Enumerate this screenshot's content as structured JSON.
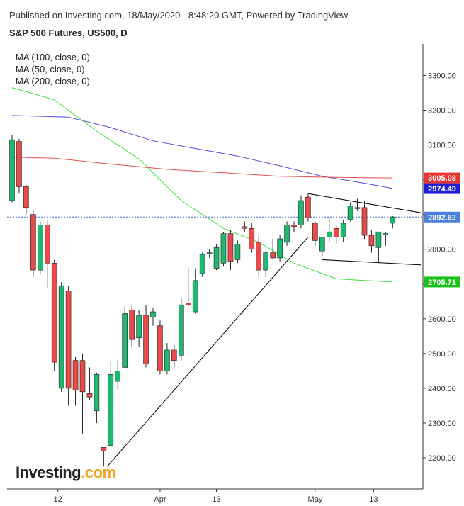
{
  "header": {
    "publish_line": "Published on Investing.com, 18/May/2020 - 8:48:20 GMT, Powered by TradingView.",
    "title": "S&P 500 Futures, US500, D"
  },
  "legend": [
    {
      "label": "MA (100, close, 0)",
      "color": "#4f4fe8"
    },
    {
      "label": "MA (50, close, 0)",
      "color": "#3ce63c"
    },
    {
      "label": "MA (200, close, 0)",
      "color": "#e84f4f"
    }
  ],
  "logo": {
    "text": "Investing",
    "suffix": ".com"
  },
  "colors": {
    "up": "#1fb86f",
    "down": "#e94b4b",
    "wick": "#222222",
    "last_price_line": "#3f6fd6"
  },
  "chart_data": {
    "type": "candlestick",
    "title": "S&P 500 Futures, US500, D",
    "y_ticks": [
      "3300.00",
      "3200.00",
      "3100.00",
      "3000.00",
      "2900.00",
      "2800.00",
      "2700.00",
      "2600.00",
      "2500.00",
      "2400.00",
      "2300.00",
      "2200.00"
    ],
    "x_ticks": [
      {
        "label": "12",
        "index": 6.5
      },
      {
        "label": "Apr",
        "index": 21
      },
      {
        "label": "13",
        "index": 29
      },
      {
        "label": "May",
        "index": 43
      },
      {
        "label": "13",
        "index": 51.3
      }
    ],
    "ylim": [
      2120,
      3380
    ],
    "price_tags": [
      {
        "label": "3005.08",
        "value": 3005.08,
        "color": "#e8352f"
      },
      {
        "label": "2974.49",
        "value": 2974.49,
        "color": "#1f1fd8"
      },
      {
        "label": "2892.62",
        "value": 2892.62,
        "color": "#4a7fdc"
      },
      {
        "label": "2705.71",
        "value": 2705.71,
        "color": "#17c117"
      }
    ],
    "candles": [
      {
        "o": 2940,
        "h": 3130,
        "l": 2935,
        "c": 3115
      },
      {
        "o": 3110,
        "h": 3118,
        "l": 2960,
        "c": 2980
      },
      {
        "o": 2980,
        "h": 2985,
        "l": 2900,
        "c": 2920
      },
      {
        "o": 2900,
        "h": 2910,
        "l": 2720,
        "c": 2740
      },
      {
        "o": 2740,
        "h": 2880,
        "l": 2730,
        "c": 2870
      },
      {
        "o": 2870,
        "h": 2885,
        "l": 2690,
        "c": 2760
      },
      {
        "o": 2760,
        "h": 2770,
        "l": 2450,
        "c": 2475
      },
      {
        "o": 2400,
        "h": 2705,
        "l": 2390,
        "c": 2695
      },
      {
        "o": 2680,
        "h": 2695,
        "l": 2350,
        "c": 2400
      },
      {
        "o": 2480,
        "h": 2490,
        "l": 2350,
        "c": 2395
      },
      {
        "o": 2480,
        "h": 2500,
        "l": 2270,
        "c": 2390
      },
      {
        "o": 2385,
        "h": 2460,
        "l": 2365,
        "c": 2375
      },
      {
        "o": 2335,
        "h": 2445,
        "l": 2300,
        "c": 2440
      },
      {
        "o": 2230,
        "h": 2230,
        "l": 2175,
        "c": 2220
      },
      {
        "o": 2235,
        "h": 2475,
        "l": 2230,
        "c": 2440
      },
      {
        "o": 2420,
        "h": 2480,
        "l": 2395,
        "c": 2450
      },
      {
        "o": 2460,
        "h": 2635,
        "l": 2460,
        "c": 2615
      },
      {
        "o": 2625,
        "h": 2640,
        "l": 2520,
        "c": 2540
      },
      {
        "o": 2545,
        "h": 2625,
        "l": 2520,
        "c": 2610
      },
      {
        "o": 2610,
        "h": 2640,
        "l": 2460,
        "c": 2470
      },
      {
        "o": 2605,
        "h": 2630,
        "l": 2580,
        "c": 2620
      },
      {
        "o": 2580,
        "h": 2595,
        "l": 2440,
        "c": 2450
      },
      {
        "o": 2450,
        "h": 2530,
        "l": 2440,
        "c": 2510
      },
      {
        "o": 2510,
        "h": 2525,
        "l": 2460,
        "c": 2480
      },
      {
        "o": 2495,
        "h": 2660,
        "l": 2480,
        "c": 2640
      },
      {
        "o": 2645,
        "h": 2745,
        "l": 2635,
        "c": 2640
      },
      {
        "o": 2620,
        "h": 2745,
        "l": 2615,
        "c": 2710
      },
      {
        "o": 2730,
        "h": 2790,
        "l": 2720,
        "c": 2785
      },
      {
        "o": 2790,
        "h": 2800,
        "l": 2775,
        "c": 2790
      },
      {
        "o": 2745,
        "h": 2815,
        "l": 2740,
        "c": 2805
      },
      {
        "o": 2760,
        "h": 2850,
        "l": 2750,
        "c": 2845
      },
      {
        "o": 2845,
        "h": 2855,
        "l": 2740,
        "c": 2765
      },
      {
        "o": 2770,
        "h": 2825,
        "l": 2760,
        "c": 2815
      },
      {
        "o": 2865,
        "h": 2880,
        "l": 2850,
        "c": 2860
      },
      {
        "o": 2860,
        "h": 2875,
        "l": 2790,
        "c": 2800
      },
      {
        "o": 2820,
        "h": 2840,
        "l": 2720,
        "c": 2740
      },
      {
        "o": 2740,
        "h": 2795,
        "l": 2720,
        "c": 2790
      },
      {
        "o": 2790,
        "h": 2830,
        "l": 2770,
        "c": 2775
      },
      {
        "o": 2775,
        "h": 2840,
        "l": 2765,
        "c": 2830
      },
      {
        "o": 2820,
        "h": 2880,
        "l": 2810,
        "c": 2870
      },
      {
        "o": 2870,
        "h": 2880,
        "l": 2850,
        "c": 2865
      },
      {
        "o": 2870,
        "h": 2955,
        "l": 2860,
        "c": 2940
      },
      {
        "o": 2950,
        "h": 2960,
        "l": 2880,
        "c": 2890
      },
      {
        "o": 2875,
        "h": 2880,
        "l": 2810,
        "c": 2825
      },
      {
        "o": 2795,
        "h": 2835,
        "l": 2780,
        "c": 2835
      },
      {
        "o": 2835,
        "h": 2890,
        "l": 2820,
        "c": 2850
      },
      {
        "o": 2860,
        "h": 2870,
        "l": 2815,
        "c": 2835
      },
      {
        "o": 2835,
        "h": 2885,
        "l": 2820,
        "c": 2875
      },
      {
        "o": 2885,
        "h": 2935,
        "l": 2880,
        "c": 2925
      },
      {
        "o": 2920,
        "h": 2945,
        "l": 2910,
        "c": 2920
      },
      {
        "o": 2920,
        "h": 2940,
        "l": 2830,
        "c": 2840
      },
      {
        "o": 2840,
        "h": 2855,
        "l": 2790,
        "c": 2810
      },
      {
        "o": 2805,
        "h": 2850,
        "l": 2760,
        "c": 2850
      },
      {
        "o": 2845,
        "h": 2850,
        "l": 2810,
        "c": 2845
      },
      {
        "o": 2875,
        "h": 2895,
        "l": 2860,
        "c": 2893
      }
    ],
    "ma_100": [
      [
        0,
        3185
      ],
      [
        8,
        3180
      ],
      [
        14,
        3150
      ],
      [
        20,
        3112
      ],
      [
        26,
        3090
      ],
      [
        32,
        3068
      ],
      [
        38,
        3040
      ],
      [
        44,
        3010
      ],
      [
        50,
        2990
      ],
      [
        54,
        2975
      ]
    ],
    "ma_50": [
      [
        0,
        3265
      ],
      [
        6,
        3230
      ],
      [
        12,
        3140
      ],
      [
        18,
        3060
      ],
      [
        24,
        2940
      ],
      [
        30,
        2860
      ],
      [
        35,
        2820
      ],
      [
        40,
        2760
      ],
      [
        46,
        2715
      ],
      [
        50,
        2710
      ],
      [
        54,
        2706
      ]
    ],
    "ma_200": [
      [
        0,
        3065
      ],
      [
        6,
        3062
      ],
      [
        14,
        3045
      ],
      [
        22,
        3030
      ],
      [
        30,
        3020
      ],
      [
        38,
        3010
      ],
      [
        46,
        3007
      ],
      [
        54,
        3005
      ]
    ],
    "trendlines": [
      {
        "from": [
          13.5,
          2175
        ],
        "to": [
          42,
          2835
        ]
      },
      {
        "from": [
          42,
          2960
        ],
        "to": [
          58,
          2905
        ]
      },
      {
        "from": [
          44,
          2770
        ],
        "to": [
          58,
          2755
        ]
      }
    ],
    "last_price": 2892.62
  }
}
